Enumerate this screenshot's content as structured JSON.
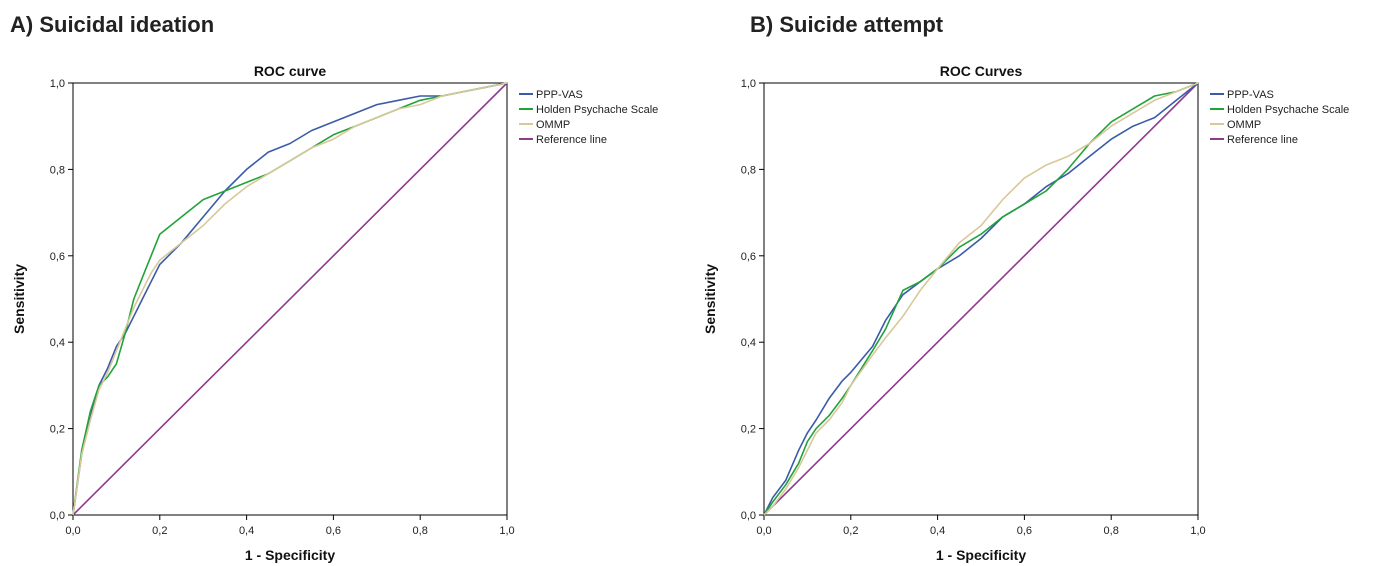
{
  "chart_data": [
    {
      "type": "line",
      "panel_label": "A) Suicidal ideation",
      "title": "ROC curve",
      "xlabel": "1 - Specificity",
      "ylabel": "Sensitivity",
      "xlim": [
        0,
        1
      ],
      "ylim": [
        0,
        1
      ],
      "xticks": [
        "0,0",
        "0,2",
        "0,4",
        "0,6",
        "0,8",
        "1,0"
      ],
      "yticks": [
        "0,0",
        "0,2",
        "0,4",
        "0,6",
        "0,8",
        "1,0"
      ],
      "grid": false,
      "legend_position": "right",
      "series": [
        {
          "name": "PPP-VAS",
          "color": "#3a5ba9",
          "x": [
            0,
            0.02,
            0.04,
            0.06,
            0.08,
            0.1,
            0.12,
            0.14,
            0.16,
            0.18,
            0.2,
            0.25,
            0.3,
            0.35,
            0.4,
            0.45,
            0.5,
            0.55,
            0.6,
            0.65,
            0.7,
            0.75,
            0.8,
            0.85,
            0.9,
            0.95,
            1.0
          ],
          "y": [
            0,
            0.14,
            0.23,
            0.3,
            0.34,
            0.39,
            0.42,
            0.46,
            0.5,
            0.54,
            0.58,
            0.63,
            0.69,
            0.75,
            0.8,
            0.84,
            0.86,
            0.89,
            0.91,
            0.93,
            0.95,
            0.96,
            0.97,
            0.97,
            0.98,
            0.99,
            1.0
          ]
        },
        {
          "name": "Holden Psychache Scale",
          "color": "#22a33a",
          "x": [
            0,
            0.02,
            0.04,
            0.06,
            0.08,
            0.1,
            0.12,
            0.14,
            0.16,
            0.18,
            0.2,
            0.25,
            0.3,
            0.35,
            0.4,
            0.45,
            0.5,
            0.55,
            0.6,
            0.65,
            0.7,
            0.75,
            0.8,
            0.85,
            0.9,
            0.95,
            1.0
          ],
          "y": [
            0,
            0.15,
            0.24,
            0.3,
            0.32,
            0.35,
            0.42,
            0.5,
            0.55,
            0.6,
            0.65,
            0.69,
            0.73,
            0.75,
            0.77,
            0.79,
            0.82,
            0.85,
            0.88,
            0.9,
            0.92,
            0.94,
            0.96,
            0.97,
            0.98,
            0.99,
            1.0
          ]
        },
        {
          "name": "OMMP",
          "color": "#d8c89a",
          "x": [
            0,
            0.02,
            0.04,
            0.06,
            0.08,
            0.1,
            0.12,
            0.14,
            0.16,
            0.18,
            0.2,
            0.25,
            0.3,
            0.35,
            0.4,
            0.45,
            0.5,
            0.55,
            0.6,
            0.65,
            0.7,
            0.75,
            0.8,
            0.85,
            0.9,
            0.95,
            1.0
          ],
          "y": [
            0,
            0.14,
            0.22,
            0.29,
            0.33,
            0.38,
            0.43,
            0.48,
            0.52,
            0.56,
            0.59,
            0.63,
            0.67,
            0.72,
            0.76,
            0.79,
            0.82,
            0.85,
            0.87,
            0.9,
            0.92,
            0.94,
            0.95,
            0.97,
            0.98,
            0.99,
            1.0
          ]
        },
        {
          "name": "Reference line",
          "color": "#8e3a8e",
          "x": [
            0,
            1
          ],
          "y": [
            0,
            1
          ]
        }
      ]
    },
    {
      "type": "line",
      "panel_label": "B) Suicide attempt",
      "title": "ROC Curves",
      "xlabel": "1 - Specificity",
      "ylabel": "Sensitivity",
      "xlim": [
        0,
        1
      ],
      "ylim": [
        0,
        1
      ],
      "xticks": [
        "0,0",
        "0,2",
        "0,4",
        "0,6",
        "0,8",
        "1,0"
      ],
      "yticks": [
        "0,0",
        "0,2",
        "0,4",
        "0,6",
        "0,8",
        "1,0"
      ],
      "grid": false,
      "legend_position": "right",
      "series": [
        {
          "name": "PPP-VAS",
          "color": "#3a5ba9",
          "x": [
            0,
            0.02,
            0.05,
            0.08,
            0.1,
            0.12,
            0.15,
            0.18,
            0.2,
            0.25,
            0.28,
            0.32,
            0.36,
            0.4,
            0.45,
            0.5,
            0.55,
            0.6,
            0.65,
            0.7,
            0.75,
            0.8,
            0.85,
            0.9,
            0.95,
            1.0
          ],
          "y": [
            0,
            0.04,
            0.08,
            0.15,
            0.19,
            0.22,
            0.27,
            0.31,
            0.33,
            0.39,
            0.45,
            0.51,
            0.54,
            0.57,
            0.6,
            0.64,
            0.69,
            0.72,
            0.76,
            0.79,
            0.83,
            0.87,
            0.9,
            0.92,
            0.96,
            1.0
          ]
        },
        {
          "name": "Holden Psychache Scale",
          "color": "#22a33a",
          "x": [
            0,
            0.02,
            0.05,
            0.08,
            0.1,
            0.12,
            0.15,
            0.18,
            0.2,
            0.25,
            0.28,
            0.32,
            0.36,
            0.4,
            0.45,
            0.5,
            0.55,
            0.6,
            0.65,
            0.7,
            0.75,
            0.8,
            0.85,
            0.9,
            0.95,
            1.0
          ],
          "y": [
            0,
            0.03,
            0.07,
            0.12,
            0.17,
            0.2,
            0.23,
            0.27,
            0.3,
            0.38,
            0.43,
            0.52,
            0.54,
            0.57,
            0.62,
            0.65,
            0.69,
            0.72,
            0.75,
            0.8,
            0.86,
            0.91,
            0.94,
            0.97,
            0.98,
            1.0
          ]
        },
        {
          "name": "OMMP",
          "color": "#d8c89a",
          "x": [
            0,
            0.02,
            0.05,
            0.08,
            0.1,
            0.12,
            0.15,
            0.18,
            0.2,
            0.25,
            0.28,
            0.32,
            0.36,
            0.4,
            0.45,
            0.5,
            0.55,
            0.6,
            0.65,
            0.7,
            0.75,
            0.8,
            0.85,
            0.9,
            0.95,
            1.0
          ],
          "y": [
            0,
            0.02,
            0.06,
            0.11,
            0.15,
            0.19,
            0.22,
            0.26,
            0.3,
            0.37,
            0.41,
            0.46,
            0.52,
            0.57,
            0.63,
            0.67,
            0.73,
            0.78,
            0.81,
            0.83,
            0.86,
            0.9,
            0.93,
            0.96,
            0.98,
            1.0
          ]
        },
        {
          "name": "Reference line",
          "color": "#8e3a8e",
          "x": [
            0,
            1
          ],
          "y": [
            0,
            1
          ]
        }
      ]
    }
  ]
}
